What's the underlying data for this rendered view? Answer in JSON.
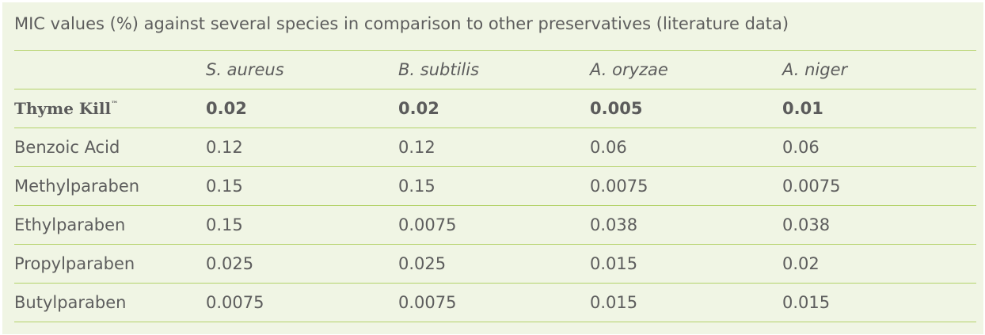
{
  "caption": "MIC values (%) against several species in comparison to other preservatives (literature data)",
  "table": {
    "headers": [
      "",
      "S. aureus",
      "B. subtilis",
      "A. oryzae",
      "A. niger"
    ],
    "highlight_row": {
      "label": "Thyme Kill",
      "trademark": "™",
      "values": [
        "0.02",
        "0.02",
        "0.005",
        "0.01"
      ]
    },
    "rows": [
      {
        "label": "Benzoic Acid",
        "values": [
          "0.12",
          "0.12",
          "0.06",
          "0.06"
        ]
      },
      {
        "label": "Methylparaben",
        "values": [
          "0.15",
          "0.15",
          "0.0075",
          "0.0075"
        ]
      },
      {
        "label": "Ethylparaben",
        "values": [
          "0.15",
          "0.0075",
          "0.038",
          "0.038"
        ]
      },
      {
        "label": "Propylparaben",
        "values": [
          "0.025",
          "0.025",
          "0.015",
          "0.02"
        ]
      },
      {
        "label": "Butylparaben",
        "values": [
          "0.0075",
          "0.0075",
          "0.015",
          "0.015"
        ]
      }
    ]
  },
  "colors": {
    "background": "#f0f5e4",
    "rule": "#b4d26a",
    "text": "#5d5d5d"
  }
}
